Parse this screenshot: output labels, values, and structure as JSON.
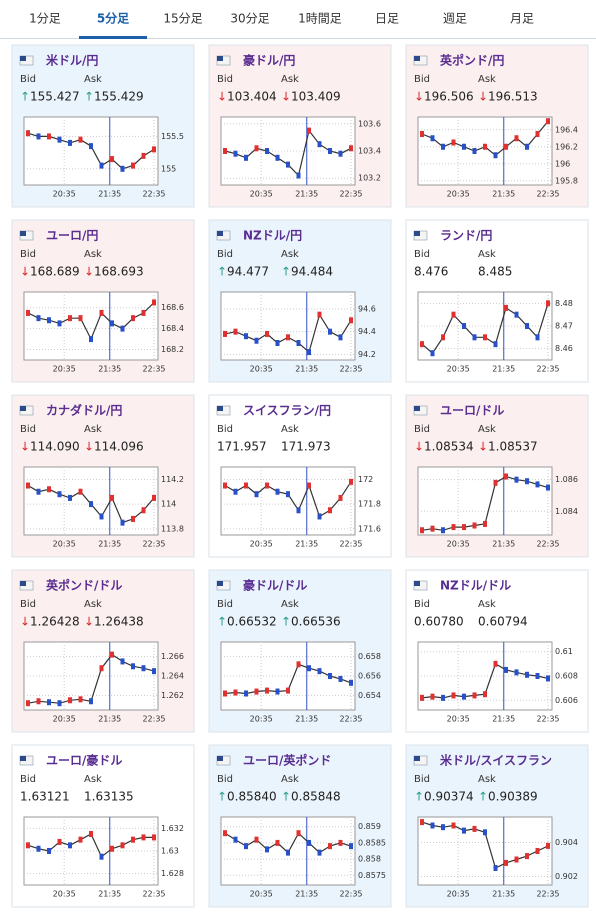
{
  "tabs": [
    "1分足",
    "5分足",
    "15分足",
    "30分足",
    "1時間足",
    "日足",
    "週足",
    "月足"
  ],
  "active_tab": 1,
  "bid_label": "Bid",
  "ask_label": "Ask",
  "x_labels": [
    "20:35",
    "21:35",
    "22:35"
  ],
  "cards": [
    {
      "name": "米ドル/円",
      "direction": "up",
      "bid": "155.427",
      "ask": "155.429",
      "chart": {
        "ylim": [
          154.75,
          155.8
        ],
        "yticks": [
          155.5,
          155
        ],
        "prices": [
          155.55,
          155.5,
          155.5,
          155.45,
          155.4,
          155.45,
          155.35,
          155.05,
          155.15,
          155.0,
          155.05,
          155.2,
          155.3
        ]
      }
    },
    {
      "name": "豪ドル/円",
      "direction": "down",
      "bid": "103.404",
      "ask": "103.409",
      "chart": {
        "ylim": [
          103.15,
          103.65
        ],
        "yticks": [
          103.6,
          103.4,
          103.2
        ],
        "prices": [
          103.4,
          103.38,
          103.35,
          103.42,
          103.4,
          103.35,
          103.3,
          103.22,
          103.55,
          103.45,
          103.4,
          103.38,
          103.42
        ]
      }
    },
    {
      "name": "英ポンド/円",
      "direction": "down",
      "bid": "196.506",
      "ask": "196.513",
      "chart": {
        "ylim": [
          195.75,
          196.55
        ],
        "yticks": [
          196.4,
          196.2,
          196,
          195.8
        ],
        "prices": [
          196.35,
          196.3,
          196.2,
          196.25,
          196.2,
          196.15,
          196.2,
          196.1,
          196.2,
          196.3,
          196.2,
          196.35,
          196.5
        ]
      }
    },
    {
      "name": "ユーロ/円",
      "direction": "down",
      "bid": "168.689",
      "ask": "168.693",
      "chart": {
        "ylim": [
          168.1,
          168.75
        ],
        "yticks": [
          168.6,
          168.4,
          168.2
        ],
        "prices": [
          168.55,
          168.5,
          168.48,
          168.45,
          168.5,
          168.5,
          168.3,
          168.55,
          168.45,
          168.4,
          168.5,
          168.55,
          168.65
        ]
      }
    },
    {
      "name": "NZドル/円",
      "direction": "up",
      "bid": "94.477",
      "ask": "94.484",
      "chart": {
        "ylim": [
          94.15,
          94.75
        ],
        "yticks": [
          94.6,
          94.4,
          94.2
        ],
        "prices": [
          94.38,
          94.4,
          94.36,
          94.32,
          94.38,
          94.3,
          94.35,
          94.3,
          94.22,
          94.55,
          94.4,
          94.35,
          94.5
        ]
      }
    },
    {
      "name": "ランド/円",
      "direction": null,
      "bid": "8.476",
      "ask": "8.485",
      "chart": {
        "ylim": [
          8.455,
          8.485
        ],
        "yticks": [
          8.48,
          8.47,
          8.46
        ],
        "prices": [
          8.462,
          8.458,
          8.465,
          8.475,
          8.47,
          8.465,
          8.465,
          8.462,
          8.478,
          8.475,
          8.47,
          8.465,
          8.48
        ]
      }
    },
    {
      "name": "カナダドル/円",
      "direction": "down",
      "bid": "114.090",
      "ask": "114.096",
      "chart": {
        "ylim": [
          113.75,
          114.3
        ],
        "yticks": [
          114.2,
          114,
          113.8
        ],
        "prices": [
          114.15,
          114.1,
          114.12,
          114.08,
          114.05,
          114.1,
          114.0,
          113.9,
          114.05,
          113.85,
          113.88,
          113.95,
          114.05
        ]
      }
    },
    {
      "name": "スイスフラン/円",
      "direction": null,
      "bid": "171.957",
      "ask": "171.973",
      "chart": {
        "ylim": [
          171.55,
          172.1
        ],
        "yticks": [
          172,
          171.8,
          171.6
        ],
        "prices": [
          171.95,
          171.9,
          171.95,
          171.88,
          171.95,
          171.9,
          171.88,
          171.75,
          171.95,
          171.7,
          171.75,
          171.85,
          171.98
        ]
      }
    },
    {
      "name": "ユーロ/ドル",
      "direction": "down",
      "bid": "1.08534",
      "ask": "1.08537",
      "chart": {
        "ylim": [
          1.0825,
          1.0868
        ],
        "yticks": [
          1.086,
          1.084
        ],
        "prices": [
          1.0828,
          1.0829,
          1.0828,
          1.083,
          1.083,
          1.0831,
          1.0832,
          1.0858,
          1.0862,
          1.086,
          1.0859,
          1.0857,
          1.0855
        ]
      }
    },
    {
      "name": "英ポンド/ドル",
      "direction": "down",
      "bid": "1.26428",
      "ask": "1.26438",
      "chart": {
        "ylim": [
          1.2605,
          1.2675
        ],
        "yticks": [
          1.266,
          1.264,
          1.262
        ],
        "prices": [
          1.2612,
          1.2614,
          1.2613,
          1.2612,
          1.2615,
          1.2616,
          1.2614,
          1.2648,
          1.2662,
          1.2655,
          1.265,
          1.2648,
          1.2645
        ]
      }
    },
    {
      "name": "豪ドル/ドル",
      "direction": "up",
      "bid": "0.66532",
      "ask": "0.66536",
      "chart": {
        "ylim": [
          0.6525,
          0.6595
        ],
        "yticks": [
          0.658,
          0.656,
          0.654
        ],
        "prices": [
          0.6542,
          0.6543,
          0.6542,
          0.6544,
          0.6545,
          0.6544,
          0.6545,
          0.6572,
          0.6568,
          0.6565,
          0.656,
          0.6557,
          0.6553
        ]
      }
    },
    {
      "name": "NZドル/ドル",
      "direction": null,
      "bid": "0.60780",
      "ask": "0.60794",
      "chart": {
        "ylim": [
          0.6052,
          0.6108
        ],
        "yticks": [
          0.61,
          0.608,
          0.606
        ],
        "prices": [
          0.6062,
          0.6063,
          0.6062,
          0.6064,
          0.6063,
          0.6064,
          0.6065,
          0.609,
          0.6085,
          0.6083,
          0.6081,
          0.608,
          0.6078
        ]
      }
    },
    {
      "name": "ユーロ/豪ドル",
      "direction": null,
      "bid": "1.63121",
      "ask": "1.63135",
      "chart": {
        "ylim": [
          1.627,
          1.633
        ],
        "yticks": [
          1.632,
          1.63,
          1.628
        ],
        "prices": [
          1.6305,
          1.6302,
          1.63,
          1.6308,
          1.6305,
          1.631,
          1.6315,
          1.6295,
          1.6302,
          1.6305,
          1.631,
          1.6312,
          1.6312
        ]
      }
    },
    {
      "name": "ユーロ/英ポンド",
      "direction": "up",
      "bid": "0.85840",
      "ask": "0.85848",
      "chart": {
        "ylim": [
          0.8572,
          0.8593
        ],
        "yticks": [
          0.859,
          0.8585,
          0.858,
          0.8575
        ],
        "prices": [
          0.8588,
          0.8586,
          0.8584,
          0.8586,
          0.8583,
          0.8585,
          0.8582,
          0.8588,
          0.8585,
          0.8582,
          0.8584,
          0.8585,
          0.8584
        ]
      }
    },
    {
      "name": "米ドル/スイスフラン",
      "direction": "up",
      "bid": "0.90374",
      "ask": "0.90389",
      "chart": {
        "ylim": [
          0.9015,
          0.9055
        ],
        "yticks": [
          0.904,
          0.902
        ],
        "prices": [
          0.9052,
          0.905,
          0.9049,
          0.905,
          0.9047,
          0.9048,
          0.9046,
          0.9025,
          0.9028,
          0.903,
          0.9032,
          0.9035,
          0.9038
        ]
      }
    }
  ]
}
